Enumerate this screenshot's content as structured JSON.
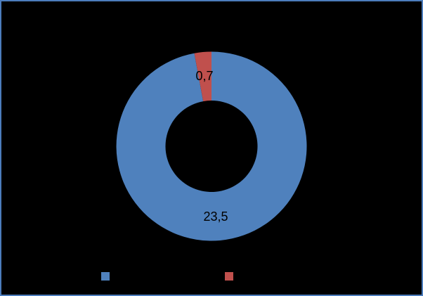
{
  "canvas": {
    "background": "#000000",
    "border_color": "#4C7CBC"
  },
  "chart_data": {
    "type": "pie",
    "subtype": "doughnut",
    "values": [
      23.5,
      0.7
    ],
    "data_labels": [
      "23,5",
      "0,7"
    ],
    "colors": [
      "#4F81BD",
      "#C0504D"
    ],
    "label_color": "#000000",
    "start_angle_deg": 0,
    "direction": "clockwise",
    "hole_ratio": 0.48,
    "legend_position": "bottom"
  },
  "legend": {
    "items": [
      {
        "swatch_color": "#4F81BD",
        "label": ""
      },
      {
        "swatch_color": "#C0504D",
        "label": ""
      }
    ]
  }
}
